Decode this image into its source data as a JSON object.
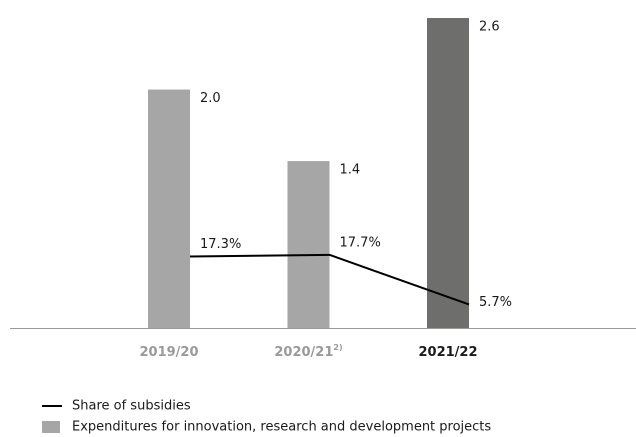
{
  "chart_data": {
    "type": "bar",
    "categories": [
      "2019/20",
      "2020/21",
      "2021/22"
    ],
    "category_footnotes": [
      null,
      "2)",
      null
    ],
    "category_colors": [
      "#9a9a9a",
      "#9a9a9a",
      "#1a1a1a"
    ],
    "series": [
      {
        "name": "Share of subsidies",
        "type": "line",
        "axis": "y2",
        "color": "#000000",
        "values": [
          17.3,
          17.7,
          5.7
        ],
        "value_labels": [
          "17.3%",
          "17.7%",
          "5.7%"
        ]
      },
      {
        "name": "Expenditures for innovation, research and development projects",
        "type": "bar",
        "color": "#a6a6a6",
        "colors": [
          "#a6a6a6",
          "#a6a6a6",
          "#6e6e6c"
        ],
        "values": [
          2.0,
          1.4,
          2.6
        ],
        "value_labels": [
          "2.0",
          "1.4",
          "2.6"
        ]
      }
    ],
    "ylim": [
      0,
      2.6
    ],
    "y2lim": [
      0,
      75
    ]
  }
}
